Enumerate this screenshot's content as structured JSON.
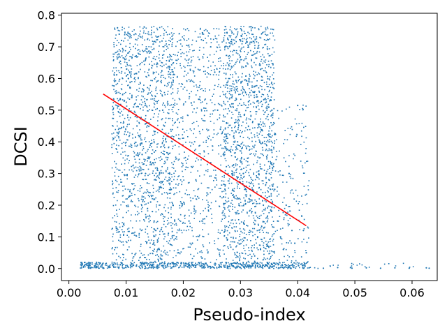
{
  "chart_data": {
    "type": "scatter",
    "title": "",
    "xlabel": "Pseudo-index",
    "ylabel": "DCSI",
    "xlim": [
      -0.0013,
      0.0644
    ],
    "ylim": [
      -0.038,
      0.806
    ],
    "x_ticks": [
      0.0,
      0.01,
      0.02,
      0.03,
      0.04,
      0.05,
      0.06
    ],
    "x_tick_labels": [
      "0.00",
      "0.01",
      "0.02",
      "0.03",
      "0.04",
      "0.05",
      "0.06"
    ],
    "y_ticks": [
      0.0,
      0.1,
      0.2,
      0.3,
      0.4,
      0.5,
      0.6,
      0.7,
      0.8
    ],
    "y_tick_labels": [
      "0.0",
      "0.1",
      "0.2",
      "0.3",
      "0.4",
      "0.5",
      "0.6",
      "0.7",
      "0.8"
    ],
    "grid": false,
    "point_color": "#1f77b4",
    "fit_color": "#ff0000",
    "fit_line": {
      "x": [
        0.006,
        0.0415
      ],
      "y": [
        0.551,
        0.135
      ]
    },
    "clusters": [
      {
        "x_range": [
          0.0075,
          0.0185
        ],
        "y_range": [
          0.0,
          0.765
        ],
        "density": "high"
      },
      {
        "x_range": [
          0.0185,
          0.027
        ],
        "y_range": [
          0.0,
          0.76
        ],
        "density": "medium"
      },
      {
        "x_range": [
          0.027,
          0.036
        ],
        "y_range": [
          0.0,
          0.765
        ],
        "density": "high"
      },
      {
        "x_range": [
          0.036,
          0.042
        ],
        "y_range": [
          0.0,
          0.52
        ],
        "density": "low"
      },
      {
        "x_range": [
          0.002,
          0.063
        ],
        "y_range": [
          0.0,
          0.02
        ],
        "density": "baseline"
      }
    ],
    "points": [
      [
        0.0022,
        0.002
      ],
      [
        0.0035,
        0.001
      ],
      [
        0.0048,
        0.003
      ],
      [
        0.0061,
        0.001
      ],
      [
        0.0072,
        0.004
      ],
      [
        0.042,
        0.002
      ],
      [
        0.0445,
        0.001
      ],
      [
        0.047,
        0.003
      ],
      [
        0.0495,
        0.001
      ],
      [
        0.052,
        0.002
      ],
      [
        0.0545,
        0.001
      ],
      [
        0.057,
        0.002
      ],
      [
        0.0595,
        0.001
      ],
      [
        0.0625,
        0.002
      ],
      [
        0.063,
        0.001
      ],
      [
        0.0085,
        0.76
      ],
      [
        0.0088,
        0.74
      ],
      [
        0.0092,
        0.72
      ],
      [
        0.0095,
        0.69
      ],
      [
        0.0098,
        0.66
      ],
      [
        0.0101,
        0.63
      ],
      [
        0.0104,
        0.6
      ],
      [
        0.0107,
        0.57
      ],
      [
        0.011,
        0.54
      ],
      [
        0.0113,
        0.51
      ],
      [
        0.0116,
        0.48
      ],
      [
        0.0119,
        0.45
      ],
      [
        0.0122,
        0.42
      ],
      [
        0.0125,
        0.39
      ],
      [
        0.0128,
        0.36
      ],
      [
        0.0131,
        0.33
      ],
      [
        0.0134,
        0.3
      ],
      [
        0.0137,
        0.27
      ],
      [
        0.014,
        0.24
      ],
      [
        0.0143,
        0.21
      ],
      [
        0.0146,
        0.18
      ],
      [
        0.0149,
        0.15
      ],
      [
        0.0152,
        0.12
      ],
      [
        0.0155,
        0.09
      ],
      [
        0.0158,
        0.06
      ],
      [
        0.0161,
        0.03
      ],
      [
        0.0164,
        0.5
      ],
      [
        0.0167,
        0.45
      ],
      [
        0.017,
        0.4
      ],
      [
        0.0173,
        0.35
      ],
      [
        0.0176,
        0.3
      ],
      [
        0.0179,
        0.25
      ],
      [
        0.0182,
        0.2
      ],
      [
        0.0185,
        0.15
      ],
      [
        0.0188,
        0.1
      ],
      [
        0.0192,
        0.05
      ],
      [
        0.0198,
        0.2
      ],
      [
        0.0205,
        0.32
      ],
      [
        0.021,
        0.15
      ],
      [
        0.0216,
        0.08
      ],
      [
        0.0222,
        0.28
      ],
      [
        0.0228,
        0.66
      ],
      [
        0.0235,
        0.72
      ],
      [
        0.0242,
        0.75
      ],
      [
        0.0248,
        0.7
      ],
      [
        0.0255,
        0.62
      ],
      [
        0.026,
        0.5
      ],
      [
        0.0265,
        0.44
      ],
      [
        0.027,
        0.36
      ],
      [
        0.0275,
        0.58
      ],
      [
        0.028,
        0.64
      ],
      [
        0.0285,
        0.52
      ],
      [
        0.029,
        0.46
      ],
      [
        0.0295,
        0.4
      ],
      [
        0.03,
        0.34
      ],
      [
        0.0305,
        0.3
      ],
      [
        0.031,
        0.26
      ],
      [
        0.0315,
        0.22
      ],
      [
        0.032,
        0.18
      ],
      [
        0.0325,
        0.14
      ],
      [
        0.033,
        0.1
      ],
      [
        0.0335,
        0.06
      ],
      [
        0.034,
        0.2
      ],
      [
        0.0345,
        0.3
      ],
      [
        0.035,
        0.4
      ],
      [
        0.0355,
        0.5
      ],
      [
        0.036,
        0.25
      ],
      [
        0.0365,
        0.15
      ],
      [
        0.037,
        0.1
      ],
      [
        0.0375,
        0.06
      ],
      [
        0.038,
        0.2
      ],
      [
        0.0385,
        0.3
      ],
      [
        0.039,
        0.12
      ],
      [
        0.0395,
        0.08
      ],
      [
        0.04,
        0.515
      ],
      [
        0.041,
        0.12
      ],
      [
        0.0415,
        0.05
      ]
    ]
  }
}
